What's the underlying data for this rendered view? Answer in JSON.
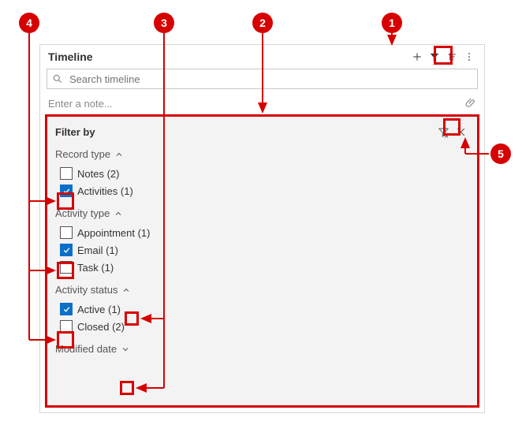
{
  "colors": {
    "accent_red": "#d70000",
    "checkbox_checked": "#0b6fc7",
    "panel_bg": "#f3f3f3",
    "border": "#d6d6d6",
    "text": "#323130",
    "muted": "#888888"
  },
  "header": {
    "title": "Timeline",
    "icons": {
      "plus": "plus-icon",
      "filter": "filter-icon",
      "sort": "sort-icon",
      "more": "more-icon"
    }
  },
  "search": {
    "placeholder": "Search timeline"
  },
  "note": {
    "placeholder": "Enter a note...",
    "attach_icon": "paperclip-icon"
  },
  "filter_panel": {
    "title": "Filter by",
    "clear_icon": "clear-filter-icon",
    "close_icon": "close-icon",
    "groups": [
      {
        "key": "record_type",
        "title": "Record type",
        "expanded": true,
        "options": [
          {
            "label": "Notes (2)",
            "checked": false
          },
          {
            "label": "Activities (1)",
            "checked": true
          }
        ]
      },
      {
        "key": "activity_type",
        "title": "Activity type",
        "expanded": true,
        "options": [
          {
            "label": "Appointment (1)",
            "checked": false
          },
          {
            "label": "Email (1)",
            "checked": true
          },
          {
            "label": "Task (1)",
            "checked": false
          }
        ]
      },
      {
        "key": "activity_status",
        "title": "Activity status",
        "expanded": true,
        "options": [
          {
            "label": "Active (1)",
            "checked": true
          },
          {
            "label": "Closed (2)",
            "checked": false
          }
        ]
      },
      {
        "key": "modified_date",
        "title": "Modified date",
        "expanded": false,
        "options": []
      }
    ]
  },
  "callouts": {
    "1": "1",
    "2": "2",
    "3": "3",
    "4": "4",
    "5": "5"
  }
}
